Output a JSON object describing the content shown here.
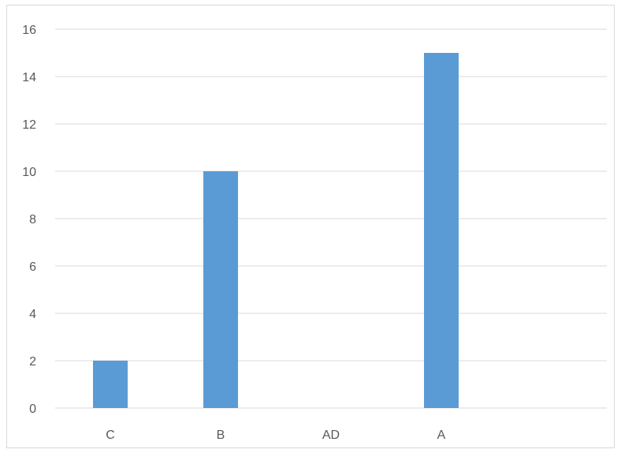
{
  "chart_data": {
    "type": "bar",
    "title": "",
    "xlabel": "",
    "ylabel": "",
    "categories": [
      "C",
      "B",
      "AD",
      "A",
      ""
    ],
    "values": [
      2,
      10,
      0,
      15,
      0
    ],
    "ylim": [
      0,
      16
    ],
    "y_ticks": [
      "0",
      "2",
      "4",
      "6",
      "8",
      "10",
      "12",
      "14",
      "16"
    ],
    "grid": true,
    "legend": "none",
    "colors": {
      "bar": "#5b9bd5",
      "grid": "#d9d9d9",
      "axis": "#d9d9d9",
      "text": "#595959"
    }
  }
}
